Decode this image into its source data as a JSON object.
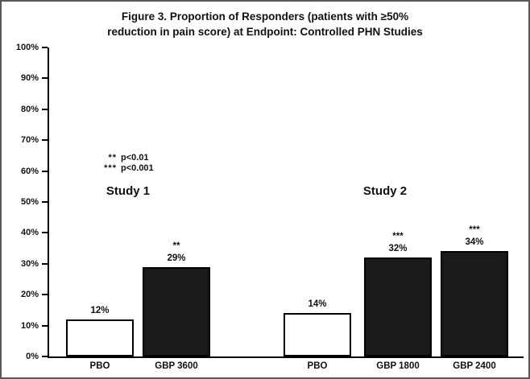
{
  "figure": {
    "title_line1": "Figure 3. Proportion of Responders (patients with ≥50%",
    "title_line2": "reduction in pain score) at Endpoint: Controlled PHN Studies"
  },
  "chart_data": {
    "type": "bar",
    "title": "Figure 3. Proportion of Responders (patients with ≥50% reduction in pain score) at Endpoint: Controlled PHN Studies",
    "xlabel": "",
    "ylabel": "",
    "ylim": [
      0,
      100
    ],
    "yticks": [
      0,
      10,
      20,
      30,
      40,
      50,
      60,
      70,
      80,
      90,
      100
    ],
    "ytick_suffix": "%",
    "grid": false,
    "legend_position": "none",
    "colors": {
      "placebo_fill": "#ffffff",
      "gabapentin_fill": "#1a1a1a",
      "axis": "#000000"
    },
    "groups": [
      {
        "name": "Study 1",
        "bars": [
          {
            "label": "PBO",
            "value": 12,
            "value_label": "12%",
            "annotation": "",
            "fill": "#ffffff"
          },
          {
            "label": "GBP 3600",
            "value": 29,
            "value_label": "29%",
            "annotation": "**",
            "fill": "#1a1a1a"
          }
        ]
      },
      {
        "name": "Study 2",
        "bars": [
          {
            "label": "PBO",
            "value": 14,
            "value_label": "14%",
            "annotation": "",
            "fill": "#ffffff"
          },
          {
            "label": "GBP 1800",
            "value": 32,
            "value_label": "32%",
            "annotation": "***",
            "fill": "#1a1a1a"
          },
          {
            "label": "GBP 2400",
            "value": 34,
            "value_label": "34%",
            "annotation": "***",
            "fill": "#1a1a1a"
          }
        ]
      }
    ],
    "significance_key": [
      {
        "stars": "**",
        "text": "p<0.01"
      },
      {
        "stars": "***",
        "text": "p<0.001"
      }
    ]
  }
}
